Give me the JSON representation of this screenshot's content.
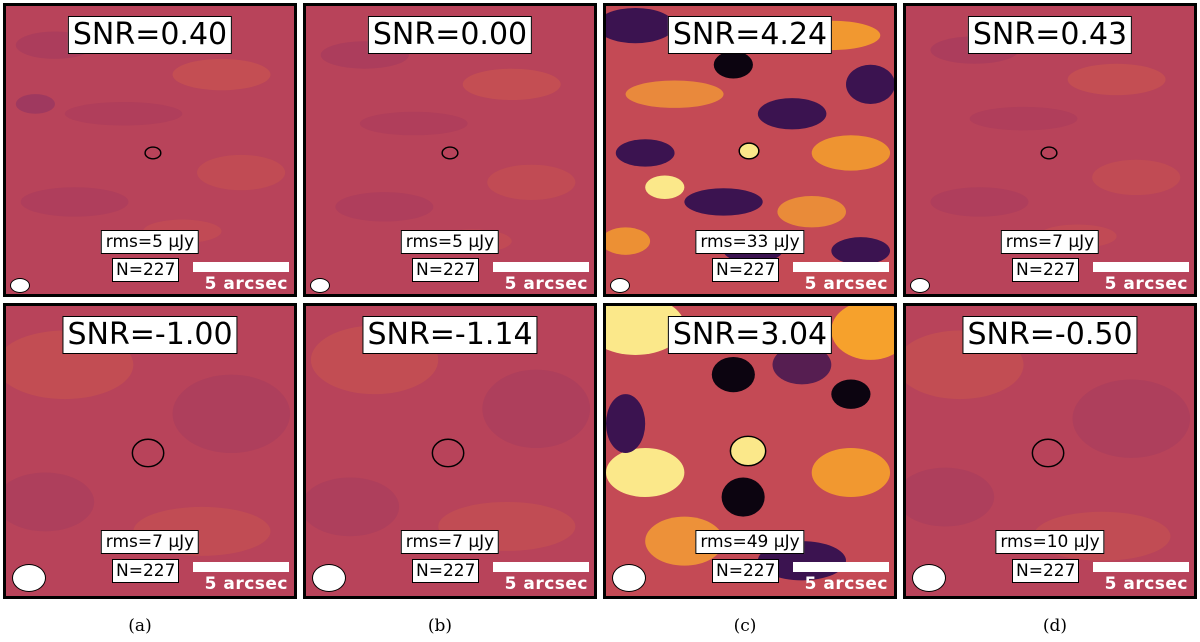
{
  "panels": [
    {
      "snr": "SNR=0.40",
      "rms": "rms=5 μJy",
      "n": "N=227",
      "scale": "5 arcsec",
      "style": "quiet",
      "row": "top"
    },
    {
      "snr": "SNR=0.00",
      "rms": "rms=5 μJy",
      "n": "N=227",
      "scale": "5 arcsec",
      "style": "quiet",
      "row": "top"
    },
    {
      "snr": "SNR=4.24",
      "rms": "rms=33 μJy",
      "n": "N=227",
      "scale": "5 arcsec",
      "style": "bright",
      "row": "top"
    },
    {
      "snr": "SNR=0.43",
      "rms": "rms=7 μJy",
      "n": "N=227",
      "scale": "5 arcsec",
      "style": "quiet",
      "row": "top"
    },
    {
      "snr": "SNR=-1.00",
      "rms": "rms=7 μJy",
      "n": "N=227",
      "scale": "5 arcsec",
      "style": "quiet",
      "row": "bottom"
    },
    {
      "snr": "SNR=-1.14",
      "rms": "rms=7 μJy",
      "n": "N=227",
      "scale": "5 arcsec",
      "style": "quiet",
      "row": "bottom"
    },
    {
      "snr": "SNR=3.04",
      "rms": "rms=49 μJy",
      "n": "N=227",
      "scale": "5 arcsec",
      "style": "bright",
      "row": "bottom"
    },
    {
      "snr": "SNR=-0.50",
      "rms": "rms=10 μJy",
      "n": "N=227",
      "scale": "5 arcsec",
      "style": "quiet",
      "row": "bottom"
    }
  ],
  "captions": [
    "(a)",
    "(b)",
    "(c)",
    "(d)"
  ],
  "colors": {
    "quiet_base": "#b8435a",
    "bright_base": "#c44a55",
    "dark_blob": "#3b1350",
    "black_blob": "#0c0410",
    "bright_blob": "#f6a12c",
    "yellow_blob": "#fbe88a"
  }
}
